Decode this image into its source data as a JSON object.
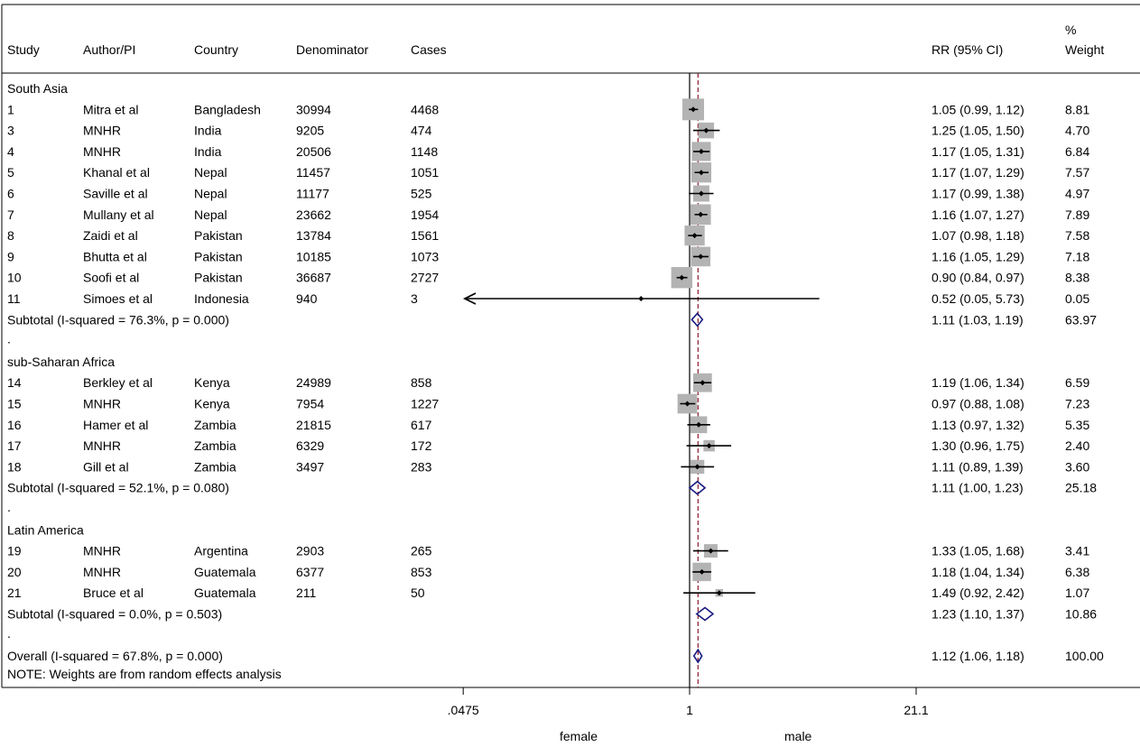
{
  "headers": {
    "study": "Study",
    "author": "Author/PI",
    "country": "Country",
    "denominator": "Denominator",
    "cases": "Cases",
    "rr": "RR (95% CI)",
    "weight_line1": "%",
    "weight_line2": "Weight"
  },
  "note": "NOTE: Weights are from random effects analysis",
  "axis_label_left": "female",
  "axis_label_right": "male",
  "colors": {
    "marker": "#000000",
    "box": "#b3b3b3",
    "diamond": "#1a1a80",
    "overall_line": "#8b1a2b"
  },
  "chart_data": {
    "type": "forest",
    "effect_measure": "RR (95% CI)",
    "x_scale": "log",
    "x_ticks": [
      0.0475,
      1,
      21.1
    ],
    "x_tick_labels": [
      ".0475",
      "1",
      "21.1"
    ],
    "null_line": 1,
    "overall_line": 1.12,
    "rows": [
      {
        "kind": "group",
        "label": "South Asia"
      },
      {
        "kind": "study",
        "study": "1",
        "author": "Mitra et al",
        "country": "Bangladesh",
        "denominator": "30994",
        "cases": "4468",
        "rr": 1.05,
        "lo": 0.99,
        "hi": 1.12,
        "rr_text": "1.05 (0.99, 1.12)",
        "weight": 8.81,
        "weight_text": "8.81"
      },
      {
        "kind": "study",
        "study": "3",
        "author": "MNHR",
        "country": "India",
        "denominator": "9205",
        "cases": "474",
        "rr": 1.25,
        "lo": 1.05,
        "hi": 1.5,
        "rr_text": "1.25 (1.05, 1.50)",
        "weight": 4.7,
        "weight_text": "4.70"
      },
      {
        "kind": "study",
        "study": "4",
        "author": "MNHR",
        "country": "India",
        "denominator": "20506",
        "cases": "1148",
        "rr": 1.17,
        "lo": 1.05,
        "hi": 1.31,
        "rr_text": "1.17 (1.05, 1.31)",
        "weight": 6.84,
        "weight_text": "6.84"
      },
      {
        "kind": "study",
        "study": "5",
        "author": "Khanal et al",
        "country": "Nepal",
        "denominator": "11457",
        "cases": "1051",
        "rr": 1.17,
        "lo": 1.07,
        "hi": 1.29,
        "rr_text": "1.17 (1.07, 1.29)",
        "weight": 7.57,
        "weight_text": "7.57"
      },
      {
        "kind": "study",
        "study": "6",
        "author": "Saville  et al",
        "country": "Nepal",
        "denominator": "11177",
        "cases": "525",
        "rr": 1.17,
        "lo": 0.99,
        "hi": 1.38,
        "rr_text": "1.17 (0.99, 1.38)",
        "weight": 4.97,
        "weight_text": "4.97"
      },
      {
        "kind": "study",
        "study": "7",
        "author": "Mullany  et al",
        "country": "Nepal",
        "denominator": "23662",
        "cases": "1954",
        "rr": 1.16,
        "lo": 1.07,
        "hi": 1.27,
        "rr_text": "1.16 (1.07, 1.27)",
        "weight": 7.89,
        "weight_text": "7.89"
      },
      {
        "kind": "study",
        "study": "8",
        "author": "Zaidi  et al",
        "country": "Pakistan",
        "denominator": "13784",
        "cases": "1561",
        "rr": 1.07,
        "lo": 0.98,
        "hi": 1.18,
        "rr_text": "1.07 (0.98, 1.18)",
        "weight": 7.58,
        "weight_text": "7.58"
      },
      {
        "kind": "study",
        "study": "9",
        "author": "Bhutta  et al",
        "country": "Pakistan",
        "denominator": "10185",
        "cases": "1073",
        "rr": 1.16,
        "lo": 1.05,
        "hi": 1.29,
        "rr_text": "1.16 (1.05, 1.29)",
        "weight": 7.18,
        "weight_text": "7.18"
      },
      {
        "kind": "study",
        "study": "10",
        "author": "Soofi et al",
        "country": "Pakistan",
        "denominator": "36687",
        "cases": "2727",
        "rr": 0.9,
        "lo": 0.84,
        "hi": 0.97,
        "rr_text": "0.90 (0.84, 0.97)",
        "weight": 8.38,
        "weight_text": "8.38"
      },
      {
        "kind": "study",
        "study": "11",
        "author": "Simoes et al",
        "country": "Indonesia",
        "denominator": "940",
        "cases": "3",
        "rr": 0.52,
        "lo": 0.05,
        "hi": 5.73,
        "rr_text": "0.52 (0.05, 5.73)",
        "weight": 0.05,
        "weight_text": "0.05",
        "arrow_left": true
      },
      {
        "kind": "subtotal",
        "label": "Subtotal  (I-squared = 76.3%, p = 0.000)",
        "rr": 1.11,
        "lo": 1.03,
        "hi": 1.19,
        "rr_text": "1.11 (1.03, 1.19)",
        "weight_text": "63.97"
      },
      {
        "kind": "dot"
      },
      {
        "kind": "group",
        "label": "sub-Saharan Africa"
      },
      {
        "kind": "study",
        "study": "14",
        "author": "Berkley et al",
        "country": "Kenya",
        "denominator": "24989",
        "cases": "858",
        "rr": 1.19,
        "lo": 1.06,
        "hi": 1.34,
        "rr_text": "1.19 (1.06, 1.34)",
        "weight": 6.59,
        "weight_text": "6.59"
      },
      {
        "kind": "study",
        "study": "15",
        "author": "MNHR",
        "country": "Kenya",
        "denominator": "7954",
        "cases": "1227",
        "rr": 0.97,
        "lo": 0.88,
        "hi": 1.08,
        "rr_text": "0.97 (0.88, 1.08)",
        "weight": 7.23,
        "weight_text": "7.23"
      },
      {
        "kind": "study",
        "study": "16",
        "author": "Hamer et al",
        "country": "Zambia",
        "denominator": "21815",
        "cases": "617",
        "rr": 1.13,
        "lo": 0.97,
        "hi": 1.32,
        "rr_text": "1.13 (0.97, 1.32)",
        "weight": 5.35,
        "weight_text": "5.35"
      },
      {
        "kind": "study",
        "study": "17",
        "author": "MNHR",
        "country": "Zambia",
        "denominator": "6329",
        "cases": "172",
        "rr": 1.3,
        "lo": 0.96,
        "hi": 1.75,
        "rr_text": "1.30 (0.96, 1.75)",
        "weight": 2.4,
        "weight_text": "2.40"
      },
      {
        "kind": "study",
        "study": "18",
        "author": "Gill et al",
        "country": "Zambia",
        "denominator": "3497",
        "cases": "283",
        "rr": 1.11,
        "lo": 0.89,
        "hi": 1.39,
        "rr_text": "1.11 (0.89, 1.39)",
        "weight": 3.6,
        "weight_text": "3.60"
      },
      {
        "kind": "subtotal",
        "label": "Subtotal  (I-squared = 52.1%, p = 0.080)",
        "rr": 1.11,
        "lo": 1.0,
        "hi": 1.23,
        "rr_text": "1.11 (1.00, 1.23)",
        "weight_text": "25.18"
      },
      {
        "kind": "dot"
      },
      {
        "kind": "group",
        "label": "Latin America"
      },
      {
        "kind": "study",
        "study": "19",
        "author": "MNHR",
        "country": "Argentina",
        "denominator": "2903",
        "cases": "265",
        "rr": 1.33,
        "lo": 1.05,
        "hi": 1.68,
        "rr_text": "1.33 (1.05, 1.68)",
        "weight": 3.41,
        "weight_text": "3.41"
      },
      {
        "kind": "study",
        "study": "20",
        "author": "MNHR",
        "country": "Guatemala",
        "denominator": "6377",
        "cases": "853",
        "rr": 1.18,
        "lo": 1.04,
        "hi": 1.34,
        "rr_text": "1.18 (1.04, 1.34)",
        "weight": 6.38,
        "weight_text": "6.38"
      },
      {
        "kind": "study",
        "study": "21",
        "author": "Bruce et al",
        "country": "Guatemala",
        "denominator": "211",
        "cases": "50",
        "rr": 1.49,
        "lo": 0.92,
        "hi": 2.42,
        "rr_text": "1.49 (0.92, 2.42)",
        "weight": 1.07,
        "weight_text": "1.07"
      },
      {
        "kind": "subtotal",
        "label": "Subtotal  (I-squared = 0.0%, p = 0.503)",
        "rr": 1.23,
        "lo": 1.1,
        "hi": 1.37,
        "rr_text": "1.23 (1.10, 1.37)",
        "weight_text": "10.86"
      },
      {
        "kind": "dot"
      },
      {
        "kind": "overall",
        "label": "Overall  (I-squared = 67.8%, p = 0.000)",
        "rr": 1.12,
        "lo": 1.06,
        "hi": 1.18,
        "rr_text": "1.12 (1.06, 1.18)",
        "weight_text": "100.00"
      }
    ]
  }
}
